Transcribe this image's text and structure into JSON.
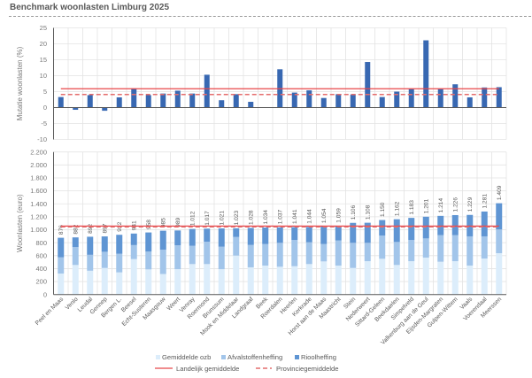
{
  "title": "Benchmark woonlasten Limburg 2025",
  "colors": {
    "mutation_bar": "#3868b2",
    "ozb": "#dcedfb",
    "afval": "#a2c5ea",
    "riool": "#5f95d3",
    "landelijk": "#e8474a",
    "provincie": "#e46d6d",
    "grid": "#e3e3e3",
    "axis": "#5a5a5a"
  },
  "chart_data": [
    {
      "type": "bar",
      "title": "",
      "xlabel": "",
      "ylabel": "Mutatie woonlasten (%)",
      "ylim": [
        -10,
        25
      ],
      "yticks": [
        25,
        20,
        15,
        10,
        5,
        0,
        -5,
        -10
      ],
      "ytick_labels": [
        "25",
        "20",
        "15",
        "10",
        "5",
        "0",
        "-5",
        "-10"
      ],
      "grid": true,
      "categories": [
        "Peel en Maas",
        "Venlo",
        "Leudal",
        "Gennep",
        "Bergen L.",
        "Beesel",
        "Echt-Susteren",
        "Maasgouw",
        "Weert",
        "Venray",
        "Roermond",
        "Brunssum",
        "Mook en Middelaar",
        "Landgraaf",
        "Beek",
        "Roerdalen",
        "Heerlen",
        "Kerkrade",
        "Horst aan de Maas",
        "Maastricht",
        "Stein",
        "Nederweert",
        "Sittard-Geleen",
        "Beekdaelen",
        "Simpelveld",
        "Valkenburg aan de Geul",
        "Eijsden-Margraten",
        "Gulpen-Wittem",
        "Vaals",
        "Voerendaal",
        "Meerssen"
      ],
      "values": [
        3.3,
        -0.7,
        3.9,
        -1.0,
        3.2,
        6.0,
        3.9,
        4.4,
        5.3,
        4.4,
        10.3,
        2.3,
        4.2,
        1.8,
        0.0,
        12.0,
        4.7,
        5.4,
        3.0,
        4.2,
        4.1,
        14.3,
        3.3,
        5.0,
        5.8,
        21.1,
        5.8,
        7.3,
        3.2,
        6.3,
        6.4
      ],
      "reference_lines": [
        {
          "name": "Landelijk gemiddelde",
          "value": 5.9,
          "style": "solid"
        },
        {
          "name": "Provinciegemiddelde",
          "value": 4.1,
          "style": "dashed"
        }
      ]
    },
    {
      "type": "bar",
      "stacked": true,
      "title": "",
      "xlabel": "",
      "ylabel": "Woonlasten (euro)",
      "ylim": [
        0,
        2200
      ],
      "yticks": [
        2200,
        2000,
        1800,
        1600,
        1400,
        1200,
        1000,
        800,
        600,
        400,
        200,
        0
      ],
      "ytick_labels": [
        "2.200",
        "2.000",
        "1.800",
        "1.600",
        "1.400",
        "1.200",
        "1.000",
        "800",
        "600",
        "400",
        "200",
        "0"
      ],
      "grid": true,
      "categories": [
        "Peel en Maas",
        "Venlo",
        "Leudal",
        "Gennep",
        "Bergen L.",
        "Beesel",
        "Echt-Susteren",
        "Maasgouw",
        "Weert",
        "Venray",
        "Roermond",
        "Brunssum",
        "Mook en Middelaar",
        "Landgraaf",
        "Beek",
        "Roerdalen",
        "Heerlen",
        "Kerkrade",
        "Horst aan de Maas",
        "Maastricht",
        "Stein",
        "Nederweert",
        "Sittard-Geleen",
        "Beekdaelen",
        "Simpelveld",
        "Valkenburg aan de Geul",
        "Eijsden-Margraten",
        "Gulpen-Wittem",
        "Vaals",
        "Voerendaal",
        "Meerssen"
      ],
      "series": [
        {
          "name": "Gemiddelde ozb",
          "color_key": "ozb",
          "values": [
            324,
            456,
            367,
            410,
            342,
            547,
            388,
            317,
            392,
            470,
            470,
            392,
            601,
            420,
            447,
            429,
            437,
            470,
            511,
            447,
            410,
            515,
            552,
            456,
            515,
            570,
            506,
            515,
            447,
            556,
            638
          ]
        },
        {
          "name": "Afvalstoffenheffing",
          "color_key": "afval",
          "values": [
            250,
            276,
            246,
            250,
            287,
            216,
            275,
            376,
            369,
            282,
            346,
            346,
            287,
            345,
            332,
            369,
            406,
            336,
            268,
            387,
            388,
            283,
            359,
            355,
            328,
            296,
            410,
            401,
            451,
            342,
            367
          ]
        },
        {
          "name": "Rioolheffing",
          "color_key": "riool",
          "values": [
            302,
            150,
            279,
            237,
            293,
            178,
            295,
            292,
            228,
            260,
            201,
            283,
            135,
            263,
            255,
            239,
            198,
            238,
            275,
            225,
            308,
            310,
            239,
            351,
            340,
            335,
            298,
            310,
            331,
            383,
            404
          ]
        }
      ],
      "totals": [
        876,
        882,
        892,
        897,
        922,
        941,
        958,
        985,
        989,
        1012,
        1017,
        1021,
        1023,
        1028,
        1034,
        1037,
        1041,
        1044,
        1054,
        1059,
        1106,
        1108,
        1150,
        1162,
        1183,
        1201,
        1214,
        1226,
        1229,
        1281,
        1409
      ],
      "data_labels": [
        "876",
        "882",
        "892",
        "897",
        "922",
        "941",
        "958",
        "985",
        "989",
        "1.012",
        "1.017",
        "1.021",
        "1.023",
        "1.028",
        "1.034",
        "1.037",
        "1.041",
        "1.044",
        "1.054",
        "1.059",
        "1.106",
        "1.108",
        "1.150",
        "1.162",
        "1.183",
        "1.201",
        "1.214",
        "1.226",
        "1.229",
        "1.281",
        "1.409"
      ],
      "reference_lines": [
        {
          "name": "Landelijk gemiddelde",
          "value": 1057,
          "style": "solid"
        },
        {
          "name": "Provinciegemiddelde",
          "value": 1044,
          "style": "dashed"
        }
      ],
      "legend": {
        "position": "bottom-center",
        "entries": [
          {
            "label": "Gemiddelde ozb",
            "kind": "swatch",
            "color_key": "ozb"
          },
          {
            "label": "Afvalstoffenheffing",
            "kind": "swatch",
            "color_key": "afval"
          },
          {
            "label": "Rioolheffing",
            "kind": "swatch",
            "color_key": "riool"
          },
          {
            "label": "Landelijk gemiddelde",
            "kind": "solid-line",
            "color_key": "landelijk"
          },
          {
            "label": "Provinciegemiddelde",
            "kind": "dashed-line",
            "color_key": "provincie"
          }
        ]
      }
    }
  ]
}
